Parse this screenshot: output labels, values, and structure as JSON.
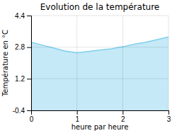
{
  "chart_data": {
    "type": "area",
    "title": "Evolution de la température",
    "xlabel": "heure par heure",
    "ylabel": "Température en °C",
    "x": [
      0,
      0.25,
      0.5,
      0.75,
      1.0,
      1.25,
      1.5,
      1.75,
      2.0,
      2.25,
      2.5,
      2.75,
      3.0
    ],
    "values": [
      3.05,
      2.9,
      2.75,
      2.6,
      2.52,
      2.58,
      2.65,
      2.72,
      2.82,
      2.95,
      3.05,
      3.18,
      3.32
    ],
    "color": "#7ecfed",
    "xlim": [
      0,
      3
    ],
    "ylim": [
      -0.4,
      4.4
    ],
    "xticks": [
      0,
      1,
      2,
      3
    ],
    "yticks": [
      -0.4,
      1.2,
      2.8,
      4.4
    ],
    "grid": true
  }
}
